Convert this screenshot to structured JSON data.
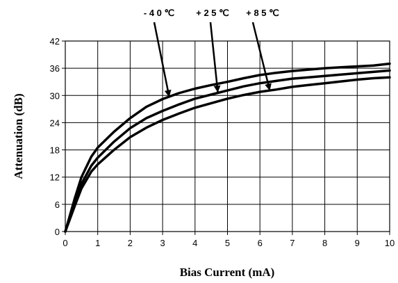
{
  "chart_data": {
    "type": "line",
    "title": "",
    "xlabel": "Bias Current (mA)",
    "ylabel": "Attenuation (dB)",
    "xlim": [
      0,
      10
    ],
    "ylim": [
      0,
      42
    ],
    "xticks": [
      0,
      1,
      2,
      3,
      4,
      5,
      6,
      7,
      8,
      9,
      10
    ],
    "yticks": [
      0,
      6,
      12,
      18,
      24,
      30,
      36,
      42
    ],
    "grid": true,
    "legend": "annotations-top",
    "series": [
      {
        "name": "- 4 0 ℃",
        "x": [
          0,
          0.3,
          0.5,
          0.8,
          1,
          1.5,
          2,
          2.5,
          3,
          3.5,
          4,
          4.5,
          5,
          5.5,
          6,
          6.5,
          7,
          7.5,
          8,
          8.5,
          9,
          9.5,
          10
        ],
        "y": [
          0,
          7.5,
          12,
          16.5,
          18.5,
          22,
          25,
          27.5,
          29.2,
          30.5,
          31.5,
          32.3,
          33,
          33.8,
          34.5,
          35,
          35.4,
          35.7,
          36,
          36.2,
          36.4,
          36.6,
          37
        ]
      },
      {
        "name": "+ 2 5 ℃",
        "x": [
          0,
          0.3,
          0.5,
          0.8,
          1,
          1.5,
          2,
          2.5,
          3,
          3.5,
          4,
          4.5,
          5,
          5.5,
          6,
          6.5,
          7,
          7.5,
          8,
          8.5,
          9,
          9.5,
          10
        ],
        "y": [
          0,
          6.5,
          10.5,
          14.5,
          16.3,
          19.8,
          22.8,
          25,
          26.6,
          28,
          29.3,
          30.2,
          31.1,
          32,
          32.7,
          33.2,
          33.7,
          34,
          34.3,
          34.6,
          34.9,
          35.2,
          35.5
        ]
      },
      {
        "name": "+ 8 5 ℃",
        "x": [
          0,
          0.3,
          0.5,
          0.8,
          1,
          1.5,
          2,
          2.5,
          3,
          3.5,
          4,
          4.5,
          5,
          5.5,
          6,
          6.5,
          7,
          7.5,
          8,
          8.5,
          9,
          9.5,
          10
        ],
        "y": [
          0,
          5.8,
          9.5,
          13.2,
          14.8,
          18,
          20.8,
          22.9,
          24.6,
          26,
          27.3,
          28.3,
          29.3,
          30.1,
          30.8,
          31.3,
          31.9,
          32.3,
          32.7,
          33.1,
          33.5,
          33.8,
          34
        ]
      }
    ],
    "annotations": [
      {
        "label": "- 4 0 ℃",
        "points_to": {
          "x": 3.2,
          "y": 29.8
        }
      },
      {
        "label": "+ 2 5 ℃",
        "points_to": {
          "x": 4.7,
          "y": 30.8
        }
      },
      {
        "label": "+ 8 5 ℃",
        "points_to": {
          "x": 6.3,
          "y": 31.2
        }
      }
    ]
  },
  "colors": {
    "line": "#000000",
    "grid": "#000000",
    "background": "#ffffff"
  }
}
